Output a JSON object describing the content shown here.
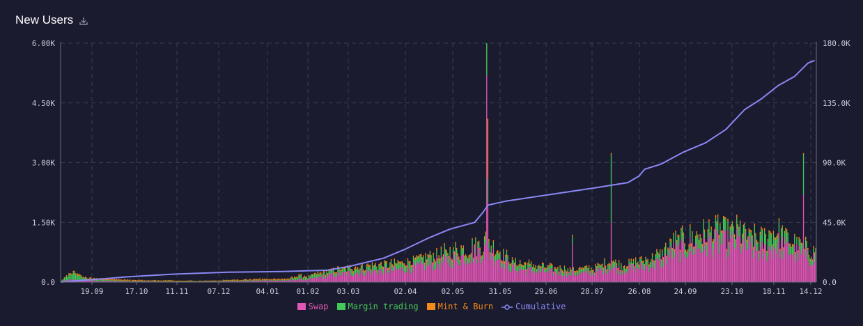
{
  "header": {
    "title": "New Users",
    "download_icon": "download-icon"
  },
  "colors": {
    "swap": "#e056b4",
    "margin": "#45c85a",
    "mint": "#f28a1a",
    "cumulative": "#8b88f5"
  },
  "chart_data": {
    "type": "bar",
    "stacked": true,
    "title": "New Users",
    "xlabel": "",
    "ylabel": "",
    "ylim": [
      0,
      6000
    ],
    "y2lim": [
      0,
      180000
    ],
    "y_ticks": [
      "0.0",
      "1.50K",
      "3.00K",
      "4.50K",
      "6.00K"
    ],
    "y2_ticks": [
      "0.0",
      "45.0K",
      "90.0K",
      "135.0K",
      "180.0K"
    ],
    "x_ticks": [
      "19.09",
      "17.10",
      "11.11",
      "07.12",
      "04.01",
      "01.02",
      "03.03",
      "02.04",
      "02.05",
      "31.05",
      "29.06",
      "28.07",
      "26.08",
      "24.09",
      "23.10",
      "18.11",
      "14.12"
    ],
    "grid": true,
    "legend_position": "bottom",
    "series": [
      {
        "name": "Swap",
        "type": "bar",
        "anchors": [
          [
            0,
            20
          ],
          [
            10,
            60
          ],
          [
            20,
            40
          ],
          [
            40,
            25
          ],
          [
            60,
            20
          ],
          [
            80,
            15
          ],
          [
            100,
            10
          ],
          [
            120,
            10
          ],
          [
            140,
            15
          ],
          [
            150,
            20
          ],
          [
            170,
            30
          ],
          [
            190,
            40
          ],
          [
            205,
            40
          ],
          [
            214,
            70
          ],
          [
            222,
            60
          ],
          [
            230,
            110
          ],
          [
            250,
            200
          ],
          [
            270,
            250
          ],
          [
            300,
            300
          ],
          [
            320,
            380
          ],
          [
            340,
            480
          ],
          [
            360,
            620
          ],
          [
            372,
            720
          ],
          [
            382,
            800
          ],
          [
            395,
            600
          ],
          [
            405,
            350
          ],
          [
            420,
            300
          ],
          [
            440,
            250
          ],
          [
            460,
            200
          ],
          [
            480,
            250
          ],
          [
            496,
            380
          ],
          [
            504,
            300
          ],
          [
            515,
            350
          ],
          [
            526,
            400
          ],
          [
            540,
            500
          ],
          [
            550,
            750
          ],
          [
            565,
            850
          ],
          [
            575,
            900
          ],
          [
            588,
            1000
          ],
          [
            598,
            950
          ],
          [
            610,
            1000
          ],
          [
            620,
            850
          ],
          [
            632,
            750
          ],
          [
            645,
            950
          ],
          [
            655,
            800
          ],
          [
            668,
            650
          ],
          [
            678,
            600
          ]
        ],
        "spikes": [
          [
            383,
            5200
          ],
          [
            384,
            2000
          ],
          [
            460,
            950
          ],
          [
            495,
            1500
          ],
          [
            668,
            2200
          ]
        ]
      },
      {
        "name": "Margin trading",
        "type": "bar",
        "anchors": [
          [
            0,
            10
          ],
          [
            10,
            160
          ],
          [
            20,
            50
          ],
          [
            40,
            25
          ],
          [
            60,
            15
          ],
          [
            80,
            10
          ],
          [
            100,
            10
          ],
          [
            120,
            10
          ],
          [
            140,
            10
          ],
          [
            150,
            15
          ],
          [
            170,
            15
          ],
          [
            190,
            15
          ],
          [
            205,
            20
          ],
          [
            214,
            80
          ],
          [
            222,
            40
          ],
          [
            230,
            70
          ],
          [
            250,
            80
          ],
          [
            270,
            100
          ],
          [
            300,
            120
          ],
          [
            320,
            130
          ],
          [
            340,
            160
          ],
          [
            360,
            140
          ],
          [
            372,
            130
          ],
          [
            382,
            150
          ],
          [
            395,
            150
          ],
          [
            405,
            120
          ],
          [
            420,
            100
          ],
          [
            440,
            80
          ],
          [
            460,
            80
          ],
          [
            480,
            80
          ],
          [
            496,
            120
          ],
          [
            504,
            90
          ],
          [
            515,
            100
          ],
          [
            526,
            120
          ],
          [
            540,
            150
          ],
          [
            550,
            180
          ],
          [
            565,
            200
          ],
          [
            575,
            230
          ],
          [
            588,
            280
          ],
          [
            598,
            300
          ],
          [
            610,
            250
          ],
          [
            620,
            200
          ],
          [
            632,
            250
          ],
          [
            645,
            280
          ],
          [
            655,
            230
          ],
          [
            668,
            180
          ],
          [
            678,
            150
          ]
        ],
        "spikes": [
          [
            383,
            800
          ],
          [
            384,
            600
          ],
          [
            460,
            200
          ],
          [
            495,
            1700
          ],
          [
            668,
            1000
          ]
        ]
      },
      {
        "name": "Mint & Burn",
        "type": "bar",
        "anchors": [
          [
            0,
            5
          ],
          [
            10,
            40
          ],
          [
            20,
            30
          ],
          [
            40,
            30
          ],
          [
            60,
            25
          ],
          [
            80,
            20
          ],
          [
            100,
            20
          ],
          [
            120,
            15
          ],
          [
            140,
            15
          ],
          [
            150,
            20
          ],
          [
            170,
            25
          ],
          [
            190,
            30
          ],
          [
            205,
            30
          ],
          [
            214,
            30
          ],
          [
            222,
            25
          ],
          [
            230,
            35
          ],
          [
            250,
            40
          ],
          [
            270,
            45
          ],
          [
            300,
            50
          ],
          [
            320,
            55
          ],
          [
            340,
            55
          ],
          [
            360,
            60
          ],
          [
            372,
            50
          ],
          [
            382,
            55
          ],
          [
            395,
            50
          ],
          [
            405,
            45
          ],
          [
            420,
            50
          ],
          [
            440,
            40
          ],
          [
            460,
            40
          ],
          [
            480,
            40
          ],
          [
            496,
            45
          ],
          [
            504,
            40
          ],
          [
            515,
            45
          ],
          [
            526,
            45
          ],
          [
            540,
            50
          ],
          [
            550,
            55
          ],
          [
            565,
            60
          ],
          [
            575,
            60
          ],
          [
            588,
            65
          ],
          [
            598,
            60
          ],
          [
            610,
            60
          ],
          [
            620,
            55
          ],
          [
            632,
            55
          ],
          [
            645,
            60
          ],
          [
            655,
            55
          ],
          [
            668,
            50
          ],
          [
            678,
            45
          ]
        ],
        "spikes": [
          [
            384,
            1500
          ],
          [
            383,
            100
          ]
        ]
      },
      {
        "name": "Cumulative",
        "type": "line",
        "axis": "right",
        "points": [
          [
            0,
            0
          ],
          [
            10,
            800
          ],
          [
            30,
            2000
          ],
          [
            60,
            4000
          ],
          [
            100,
            6000
          ],
          [
            150,
            7500
          ],
          [
            200,
            8000
          ],
          [
            240,
            9000
          ],
          [
            260,
            12000
          ],
          [
            290,
            18000
          ],
          [
            310,
            25000
          ],
          [
            330,
            33000
          ],
          [
            350,
            40000
          ],
          [
            372,
            45000
          ],
          [
            380,
            53000
          ],
          [
            384,
            58000
          ],
          [
            400,
            61000
          ],
          [
            440,
            66000
          ],
          [
            480,
            71000
          ],
          [
            510,
            75000
          ],
          [
            520,
            80000
          ],
          [
            525,
            85000
          ],
          [
            540,
            89000
          ],
          [
            560,
            98000
          ],
          [
            580,
            105000
          ],
          [
            598,
            115000
          ],
          [
            615,
            130000
          ],
          [
            630,
            138000
          ],
          [
            645,
            148000
          ],
          [
            660,
            155000
          ],
          [
            672,
            165000
          ],
          [
            678,
            167000
          ]
        ]
      }
    ]
  }
}
